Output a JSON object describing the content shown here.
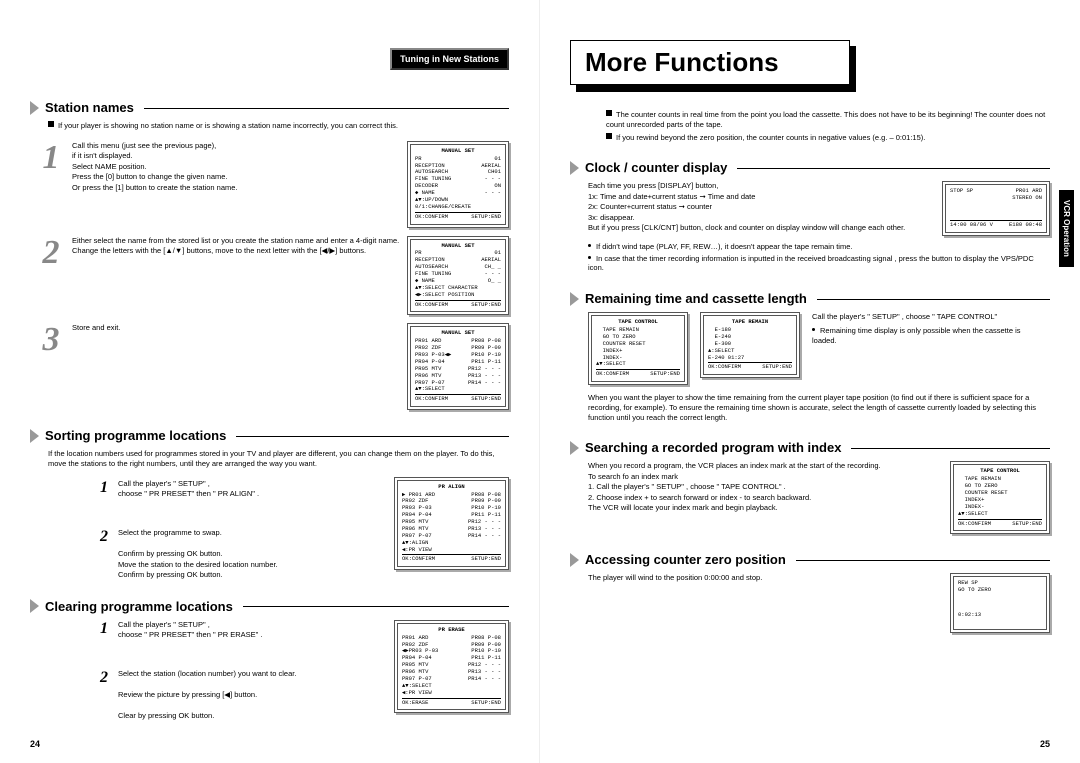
{
  "leftPage": {
    "tabHeader": "Tuning in New Stations",
    "pageNum": "24",
    "s1": {
      "title": "Station names",
      "intro": "If your player is showing no station name or is showing a station name incorrectly, you can correct this.",
      "step1": "Call this menu (just see the previous page),\nif it isn't displayed.\nSelect NAME position.\nPress the [0] button to change the given name.\nOr press the [1] button to create the station name.",
      "step2": "Either select the name from the stored list or you create the station name and enter a 4-digit name.\nChange the letters with the [▲/▼] buttons, move to the next letter with the [◀/▶] buttons.",
      "step3": "Store and exit."
    },
    "osd1": {
      "title": "MANUAL SET",
      "rows": [
        [
          "PR",
          "01"
        ],
        [
          "RECEPTION",
          "AERIAL"
        ],
        [
          "AUTOSEARCH",
          "CH01"
        ],
        [
          "FINE TUNING",
          "- - -"
        ],
        [
          "DECODER",
          "ON"
        ],
        [
          "◆ NAME",
          "- - -"
        ]
      ],
      "lines": [
        "▲▼:UP/DOWN",
        "0/1:CHANGE/CREATE"
      ],
      "footer": [
        "OK:CONFIRM",
        "SETUP:END"
      ]
    },
    "osd2": {
      "title": "MANUAL SET",
      "rows": [
        [
          "PR",
          "01"
        ],
        [
          "RECEPTION",
          "AERIAL"
        ],
        [
          "AUTOSEARCH",
          "CH_ _"
        ],
        [
          "FINE TUNING",
          "- - -"
        ],
        [
          "◆ NAME",
          "O_ _"
        ]
      ],
      "lines": [
        "▲▼:SELECT CHARACTER",
        "◀▶:SELECT POSITION"
      ],
      "footer": [
        "OK:CONFIRM",
        "SETUP:END"
      ]
    },
    "osd3": {
      "title": "MANUAL SET",
      "rows2": [
        [
          "PR01 ARD",
          "PR08 P-08"
        ],
        [
          "PR02 ZDF",
          "PR09 P-09"
        ],
        [
          "PR03 P-03◀▶",
          "PR10 P-10"
        ],
        [
          "PR04 P-04",
          "PR11 P-11"
        ],
        [
          "PR05 MTV",
          "PR12 - - -"
        ],
        [
          "PR06 MTV",
          "PR13 - - -"
        ],
        [
          "PR07 P-07",
          "PR14 - - -"
        ]
      ],
      "lines": [
        "▲▼:SELECT"
      ],
      "footer": [
        "OK:CONFIRM",
        "SETUP:END"
      ]
    },
    "s2": {
      "title": "Sorting programme locations",
      "intro": "If the location numbers used for programmes stored in your TV and player are different, you can change them on the player. To do this, move the stations to the right numbers, until they are arranged the way you want.",
      "step1": "Call the player's \" SETUP\" ,\nchoose \" PR PRESET\"  then \" PR ALIGN\" .",
      "step2": "Select the programme to swap.\n\nConfirm by pressing OK button.\nMove the station to the desired location number.\nConfirm by pressing OK button."
    },
    "osd4": {
      "title": "PR ALIGN",
      "rows2": [
        [
          "▶ PR01 ARD",
          "PR08 P-08"
        ],
        [
          "  PR02 ZDF",
          "PR09 P-09"
        ],
        [
          "  PR03 P-03",
          "PR10 P-10"
        ],
        [
          "  PR04 P-04",
          "PR11 P-11"
        ],
        [
          "  PR05 MTV",
          "PR12 - - -"
        ],
        [
          "  PR06 MTV",
          "PR13 - - -"
        ],
        [
          "  PR07 P-07",
          "PR14 - - -"
        ]
      ],
      "lines": [
        "▲▼:ALIGN",
        "◀:PR VIEW"
      ],
      "footer": [
        "OK:CONFIRM",
        "SETUP:END"
      ]
    },
    "s3": {
      "title": "Clearing programme locations",
      "step1": "Call the player's \" SETUP\" ,\nchoose \" PR PRESET\"  then \" PR ERASE\" .",
      "step2": "Select the station (location number) you want to clear.\n\nReview the picture by pressing [◀] button.\n\nClear by pressing OK button."
    },
    "osd5": {
      "title": "PR ERASE",
      "rows2": [
        [
          "  PR01 ARD",
          "PR08 P-08"
        ],
        [
          "  PR02 ZDF",
          "PR09 P-09"
        ],
        [
          "◀▶PR03 P-03",
          "PR10 P-10"
        ],
        [
          "  PR04 P-04",
          "PR11 P-11"
        ],
        [
          "  PR05 MTV",
          "PR12 - - -"
        ],
        [
          "  PR06 MTV",
          "PR13 - - -"
        ],
        [
          "  PR07 P-07",
          "PR14 - - -"
        ]
      ],
      "lines": [
        "▲▼:SELECT",
        "◀:PR VIEW"
      ],
      "footer": [
        "OK:ERASE",
        "SETUP:END"
      ]
    }
  },
  "rightPage": {
    "mainTitle": "More Functions",
    "pageNum": "25",
    "sideTab": "VCR Operation",
    "topBullets": [
      "The counter counts in real time from the point you load the cassette. This does not have to be its beginning!  The counter does not count unrecorded parts of the tape.",
      "If you rewind beyond the zero position, the counter counts in negative values  (e.g. – 0:01:15)."
    ],
    "s1": {
      "title": "Clock / counter display",
      "body": "Each time you press [DISPLAY] button,\n1x: Time and date+current status  ➞  Time and date\n2x: Counter+current status  ➞  counter\n3x: disappear.\nBut if you press [CLK/CNT] button, clock and counter on display window will change each other.",
      "b1": "If didn't wind tape (PLAY, FF, REW…), it doesn't appear the tape remain time.",
      "b2": "In case that the timer recording information is inputted in the received broadcasting signal , press the button to display the VPS/PDC icon."
    },
    "osd_disp": {
      "r1": [
        "STOP  SP",
        "PR01  ARD"
      ],
      "r2": [
        "",
        "STEREO ON"
      ],
      "r3": [
        "14:00 08/06  V",
        "E180  00:48"
      ]
    },
    "s2": {
      "title": "Remaining time and cassette length",
      "right": "Call the player's \" SETUP\" , choose \" TAPE CONTROL\"",
      "rightB": "Remaining time display is only possible when the cassette is loaded.",
      "body": "When you want the player to show the time remaining from the current player tape position (to find out if there is sufficient space for a recording, for example).\nTo ensure the remaining time shown is accurate, select the length of cassette currently loaded by selecting this function until you reach the correct length."
    },
    "osd_tc": {
      "title": "TAPE CONTROL",
      "rows": [
        "TAPE REMAIN",
        "GO TO ZERO",
        "COUNTER RESET",
        "INDEX+",
        "INDEX-"
      ],
      "lines": [
        "▲▼:SELECT"
      ],
      "footer": [
        "OK:CONFIRM",
        "SETUP:END"
      ]
    },
    "osd_tr": {
      "title": "TAPE REMAIN",
      "rows": [
        "E-180",
        "E-240",
        "E-300"
      ],
      "lines": [
        "▲:SELECT",
        "E-240  01:27"
      ],
      "footer": [
        "OK:CONFIRM",
        "SETUP:END"
      ]
    },
    "s3": {
      "title": "Searching a recorded program with index",
      "body": "When you record a program, the VCR places an index mark at the start of the recording.\nTo search fo an index mark\n1. Call the player's \" SETUP\" ,  choose \" TAPE CONTROL\" .\n2. Choose index + to search forward or index - to search backward.\n    The VCR will locate your index mark and begin playback."
    },
    "osd_tc2": {
      "title": "TAPE CONTROL",
      "rows": [
        "TAPE REMAIN",
        "GO TO ZERO",
        "COUNTER RESET",
        "INDEX+",
        "INDEX-"
      ],
      "lines": [
        "▲▼:SELECT"
      ],
      "footer": [
        "OK:CONFIRM",
        "SETUP:END"
      ]
    },
    "s4": {
      "title": "Accessing counter zero position",
      "body": "The player will wind to the position 0:00:00 and stop."
    },
    "osd_rew": {
      "r1": "REW  SP",
      "r2": "GO TO ZERO",
      "r3": "0:02:13"
    }
  }
}
